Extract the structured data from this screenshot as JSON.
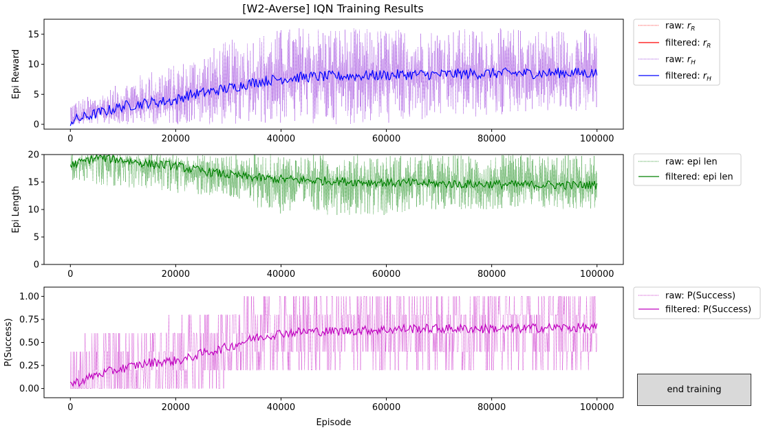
{
  "title": "[W2-Averse] IQN Training Results",
  "button": {
    "end_training": "end training"
  },
  "colors": {
    "r_R": "#ff0000",
    "r_H": "#0000ff",
    "len": "#008000",
    "succ": "#bf00bf",
    "raw_H": "#8a1fd6"
  },
  "chart_data": [
    {
      "type": "line",
      "ylabel": "Epi Reward",
      "xlim": [
        -5000,
        105000
      ],
      "ylim": [
        -0.8,
        17.5
      ],
      "xticks": [
        0,
        20000,
        40000,
        60000,
        80000,
        100000
      ],
      "yticks": [
        0,
        5,
        10,
        15
      ],
      "legend_position": "outside-right-top",
      "legend": [
        "raw: r_R",
        "filtered: r_R",
        "raw: r_H",
        "filtered: r_H"
      ],
      "series": [
        {
          "name": "filtered: r_H",
          "x": [
            0,
            5000,
            10000,
            15000,
            20000,
            22000,
            25000,
            30000,
            35000,
            40000,
            45000,
            50000,
            55000,
            60000,
            65000,
            70000,
            75000,
            80000,
            85000,
            90000,
            95000,
            100000
          ],
          "y": [
            0.5,
            1.8,
            3.0,
            3.6,
            4.0,
            4.8,
            5.2,
            6.0,
            7.0,
            7.6,
            7.9,
            8.0,
            8.1,
            8.2,
            8.3,
            8.3,
            8.4,
            8.5,
            8.5,
            8.5,
            8.6,
            8.5
          ]
        },
        {
          "name": "raw: r_H",
          "x": [
            0,
            5000,
            10000,
            15000,
            20000,
            25000,
            30000,
            35000,
            40000,
            45000,
            50000,
            55000,
            60000,
            65000,
            70000,
            75000,
            80000,
            85000,
            90000,
            95000,
            100000
          ],
          "y_min": [
            0,
            0,
            0,
            0,
            0,
            0,
            0,
            0,
            0,
            0,
            0,
            0,
            0,
            0,
            1,
            1,
            1,
            2,
            2,
            2,
            2
          ],
          "y_max": [
            4,
            5,
            7,
            9,
            10,
            12,
            14,
            15,
            16,
            16.5,
            16.5,
            16,
            16,
            16,
            16,
            16,
            16,
            16,
            16,
            16,
            16
          ]
        }
      ]
    },
    {
      "type": "line",
      "ylabel": "Epi Length",
      "xlim": [
        -5000,
        105000
      ],
      "ylim": [
        0,
        20
      ],
      "xticks": [
        0,
        20000,
        40000,
        60000,
        80000,
        100000
      ],
      "yticks": [
        0,
        5,
        10,
        15,
        20
      ],
      "legend_position": "outside-right-top",
      "legend": [
        "raw: epi len",
        "filtered: epi len"
      ],
      "series": [
        {
          "name": "filtered: epi len",
          "x": [
            0,
            5000,
            10000,
            15000,
            20000,
            22000,
            25000,
            30000,
            35000,
            40000,
            45000,
            50000,
            55000,
            60000,
            65000,
            70000,
            75000,
            80000,
            85000,
            90000,
            95000,
            100000
          ],
          "y": [
            18.0,
            19.5,
            19.0,
            18.3,
            18.0,
            17.5,
            17.0,
            16.3,
            15.8,
            15.5,
            15.3,
            15.2,
            15.0,
            14.9,
            14.8,
            14.7,
            14.6,
            14.6,
            14.5,
            14.5,
            14.4,
            14.5
          ]
        },
        {
          "name": "raw: epi len",
          "x": [
            0,
            10000,
            20000,
            30000,
            40000,
            50000,
            60000,
            70000,
            80000,
            90000,
            100000
          ],
          "y_min": [
            15,
            14,
            13,
            12,
            9,
            9,
            9,
            10,
            10,
            10,
            10
          ],
          "y_max": [
            20,
            20,
            20,
            20,
            20,
            20,
            20,
            20,
            20,
            20,
            20
          ]
        }
      ]
    },
    {
      "type": "line",
      "ylabel": "P(Success)",
      "xlabel": "Episode",
      "xlim": [
        -5000,
        105000
      ],
      "ylim": [
        -0.1,
        1.1
      ],
      "xticks": [
        0,
        20000,
        40000,
        60000,
        80000,
        100000
      ],
      "yticks": [
        0.0,
        0.25,
        0.5,
        0.75,
        1.0
      ],
      "legend_position": "outside-right-top",
      "legend": [
        "raw: P(Success)",
        "filtered: P(Success)"
      ],
      "series": [
        {
          "name": "filtered: P(Success)",
          "x": [
            0,
            2000,
            5000,
            10000,
            15000,
            20000,
            22000,
            25000,
            30000,
            35000,
            40000,
            45000,
            50000,
            55000,
            60000,
            65000,
            70000,
            75000,
            80000,
            85000,
            90000,
            95000,
            100000
          ],
          "y": [
            0.05,
            0.08,
            0.15,
            0.22,
            0.28,
            0.3,
            0.32,
            0.38,
            0.45,
            0.55,
            0.6,
            0.62,
            0.62,
            0.63,
            0.64,
            0.65,
            0.65,
            0.65,
            0.65,
            0.65,
            0.66,
            0.66,
            0.66
          ]
        },
        {
          "name": "raw: P(Success)",
          "x": [
            0,
            10000,
            20000,
            30000,
            40000,
            50000,
            60000,
            70000,
            80000,
            90000,
            100000
          ],
          "y_min": [
            0,
            0,
            0,
            0,
            0,
            0,
            0,
            0.2,
            0.2,
            0.2,
            0.2
          ],
          "y_max": [
            0.6,
            0.8,
            0.8,
            1.0,
            1.0,
            1.0,
            1.0,
            1.0,
            1.0,
            1.0,
            1.0
          ]
        }
      ]
    }
  ]
}
